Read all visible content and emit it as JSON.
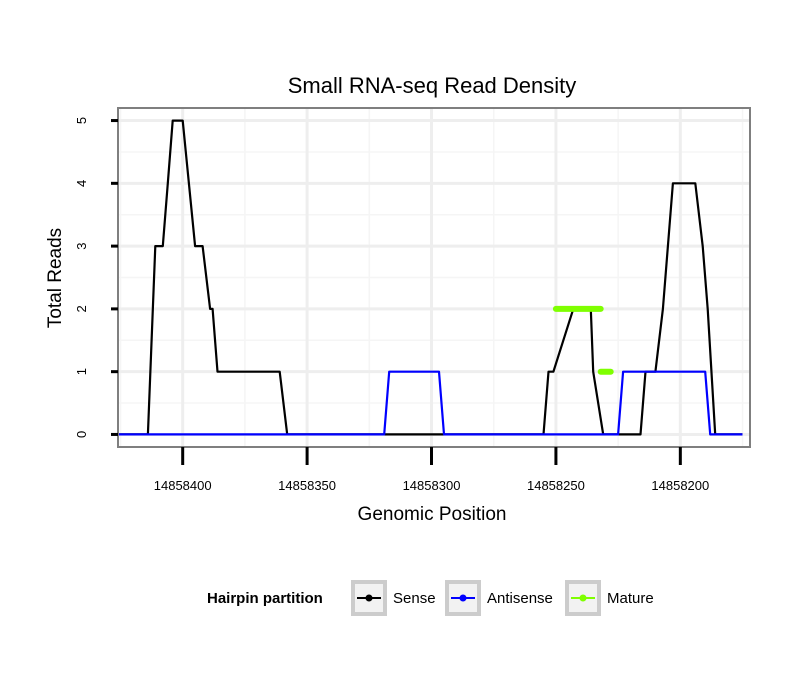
{
  "chart_data": {
    "type": "line",
    "title": "Small RNA-seq Read Density",
    "xlabel": "Genomic Position",
    "ylabel": "Total Reads",
    "x_reversed": true,
    "xlim": [
      14858426,
      14858172
    ],
    "ylim": [
      -0.2,
      5.2
    ],
    "x_ticks": [
      14858400,
      14858350,
      14858300,
      14858250,
      14858200
    ],
    "x_tick_labels": [
      "14858400",
      "14858350",
      "14858300",
      "14858250",
      "14858200"
    ],
    "y_ticks": [
      0,
      1,
      2,
      3,
      4,
      5
    ],
    "y_tick_labels": [
      "0",
      "1",
      "2",
      "3",
      "4",
      "5"
    ],
    "grid": true,
    "legend": {
      "title": "Hairpin partition",
      "placement": "bottom",
      "entries": [
        "Sense",
        "Antisense",
        "Mature"
      ]
    },
    "series": [
      {
        "name": "Sense",
        "color": "#000000",
        "x": [
          14858427,
          14858414,
          14858411,
          14858408,
          14858406,
          14858404,
          14858400,
          14858395,
          14858392,
          14858389,
          14858388,
          14858386,
          14858383,
          14858361,
          14858358,
          14858255,
          14858253,
          14858251,
          14858243,
          14858236,
          14858235,
          14858231,
          14858216,
          14858214,
          14858210,
          14858207,
          14858205,
          14858203,
          14858194,
          14858191,
          14858189,
          14858186,
          14858175
        ],
        "y": [
          0,
          0,
          3,
          3,
          4,
          5,
          5,
          3,
          3,
          2,
          2,
          1,
          1,
          1,
          0,
          0,
          1,
          1,
          2,
          2,
          1,
          0,
          0,
          1,
          1,
          2,
          3,
          4,
          4,
          3,
          2,
          0,
          0
        ]
      },
      {
        "name": "Antisense",
        "color": "#0000ff",
        "x": [
          14858427,
          14858319,
          14858317,
          14858297,
          14858295,
          14858225,
          14858223,
          14858206,
          14858205,
          14858190,
          14858188,
          14858175
        ],
        "y": [
          0,
          0,
          1,
          1,
          0,
          0,
          1,
          1,
          1,
          1,
          0,
          0
        ]
      },
      {
        "name": "Mature",
        "color": "#7fff00",
        "x": [
          14858250,
          14858232
        ],
        "y": [
          2,
          2
        ]
      },
      {
        "name": "Mature",
        "color": "#7fff00",
        "x": [
          14858232,
          14858228
        ],
        "y": [
          1,
          1
        ]
      }
    ]
  }
}
